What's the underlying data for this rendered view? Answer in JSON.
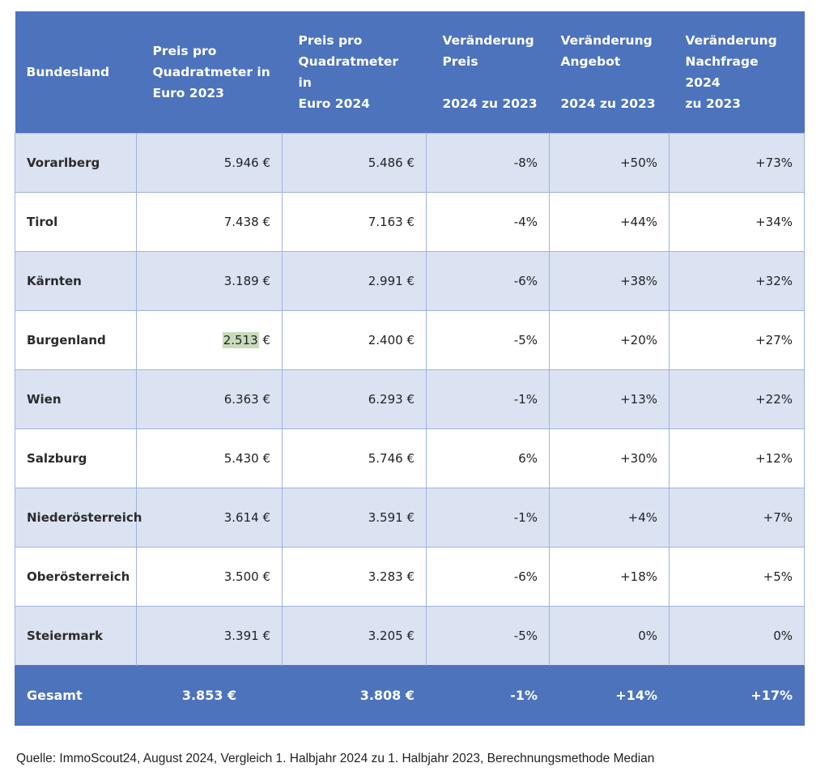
{
  "header": {
    "col1": "Bundesland",
    "col2_lines": [
      "Preis pro",
      "Quadratmeter in",
      "Euro 2023"
    ],
    "col3_lines": [
      "Preis pro",
      "Quadratmeter in",
      "Euro 2024"
    ],
    "col4_lines": [
      "Veränderung",
      "Preis",
      "2024 zu 2023"
    ],
    "col5_lines": [
      "Veränderung",
      "Angebot",
      "2024 zu 2023"
    ],
    "col6_lines": [
      "Veränderung",
      "Nachfrage 2024",
      "zu 2023"
    ]
  },
  "rows": [
    {
      "land": "Vorarlberg",
      "p2023": "5.946 €",
      "p2024": "5.486 €",
      "chg_price": "-8%",
      "chg_supply": "+50%",
      "chg_demand": "+73%"
    },
    {
      "land": "Tirol",
      "p2023": "7.438 €",
      "p2024": "7.163 €",
      "chg_price": "-4%",
      "chg_supply": "+44%",
      "chg_demand": "+34%"
    },
    {
      "land": "Kärnten",
      "p2023": "3.189 €",
      "p2024": "2.991 €",
      "chg_price": "-6%",
      "chg_supply": "+38%",
      "chg_demand": "+32%"
    },
    {
      "land": "Burgenland",
      "p2023_num": "2.513",
      "p2023_unit": " €",
      "p2024": "2.400 €",
      "chg_price": "-5%",
      "chg_supply": "+20%",
      "chg_demand": "+27%"
    },
    {
      "land": "Wien",
      "p2023": "6.363 €",
      "p2024": "6.293 €",
      "chg_price": "-1%",
      "chg_supply": "+13%",
      "chg_demand": "+22%"
    },
    {
      "land": "Salzburg",
      "p2023": "5.430 €",
      "p2024": "5.746 €",
      "chg_price": "6%",
      "chg_supply": "+30%",
      "chg_demand": "+12%"
    },
    {
      "land": "Niederösterreich",
      "p2023": "3.614 €",
      "p2024": "3.591 €",
      "chg_price": "-1%",
      "chg_supply": "+4%",
      "chg_demand": "+7%"
    },
    {
      "land": "Oberösterreich",
      "p2023": "3.500 €",
      "p2024": "3.283 €",
      "chg_price": "-6%",
      "chg_supply": "+18%",
      "chg_demand": "+5%"
    },
    {
      "land": "Steiermark",
      "p2023": "3.391 €",
      "p2024": "3.205 €",
      "chg_price": "-5%",
      "chg_supply": "0%",
      "chg_demand": "0%"
    }
  ],
  "total": {
    "land": "Gesamt",
    "p2023": "3.853 €",
    "p2024": "3.808 €",
    "chg_price": "-1%",
    "chg_supply": "+14%",
    "chg_demand": "+17%"
  },
  "source": "Quelle: ImmoScout24, August 2024, Vergleich 1. Halbjahr 2024 zu 1. Halbjahr 2023, Berechnungsmethode Median",
  "colors": {
    "header_bg": "#4d73bd",
    "row_shade": "#dbe3f3",
    "highlight": "#c8dcbb"
  }
}
